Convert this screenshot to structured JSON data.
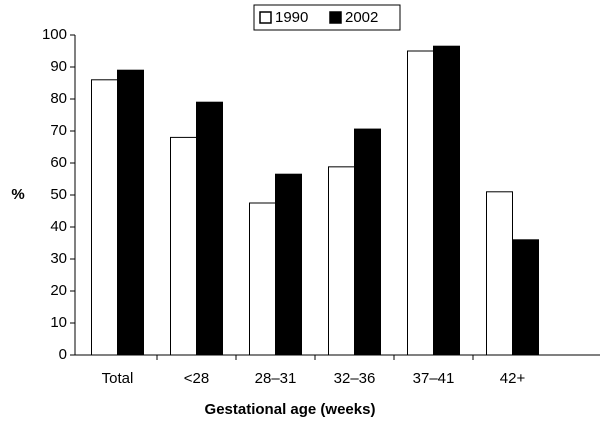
{
  "chart_data": {
    "type": "bar",
    "x_label": "Gestational age (weeks)",
    "y_label": "%",
    "categories": [
      "Total",
      "<28",
      "28–31",
      "32–36",
      "37–41",
      "42+"
    ],
    "series": [
      {
        "name": "1990",
        "color": "#ffffff",
        "values": [
          86,
          68,
          47.5,
          58.8,
          95,
          51
        ]
      },
      {
        "name": "2002",
        "color": "#000000",
        "values": [
          89,
          79,
          56.5,
          70.6,
          96.5,
          36
        ]
      }
    ],
    "ylim": [
      0,
      100
    ],
    "yticks": [
      0,
      10,
      20,
      30,
      40,
      50,
      60,
      70,
      80,
      90,
      100
    ],
    "legend": "top"
  }
}
